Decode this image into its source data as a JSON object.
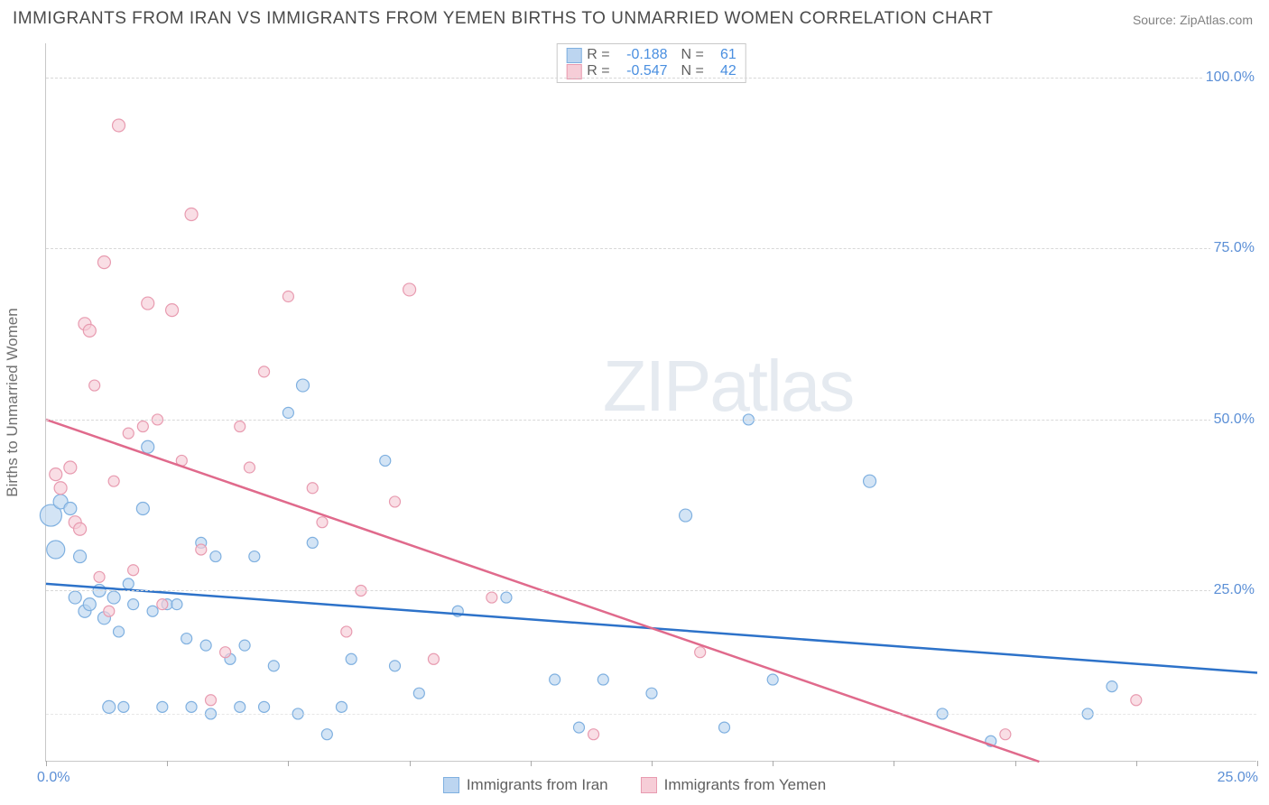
{
  "title": "IMMIGRANTS FROM IRAN VS IMMIGRANTS FROM YEMEN BIRTHS TO UNMARRIED WOMEN CORRELATION CHART",
  "source": "Source: ZipAtlas.com",
  "watermark_bold": "ZIP",
  "watermark_thin": "atlas",
  "yaxis_label": "Births to Unmarried Women",
  "chart": {
    "type": "scatter",
    "background_color": "#ffffff",
    "grid_color": "#d8d8d8",
    "border_color": "#c8c8c8",
    "xlim": [
      0,
      25
    ],
    "ylim": [
      0,
      105
    ],
    "xticks": [
      0,
      2.5,
      5,
      7.5,
      10,
      12.5,
      15,
      17.5,
      20,
      22.5,
      25
    ],
    "xtick_labels": {
      "0": "0.0%",
      "25": "25.0%"
    },
    "ygrid": [
      25,
      50,
      75,
      100
    ],
    "ygrid_minor": [
      7
    ],
    "ytick_labels": {
      "25": "25.0%",
      "50": "50.0%",
      "75": "75.0%",
      "100": "100.0%"
    },
    "label_color": "#5b8fd6",
    "axis_label_color": "#707070",
    "label_fontsize": 16
  },
  "series": [
    {
      "name": "Immigrants from Iran",
      "fill": "#bcd5f0",
      "stroke": "#7fb0e0",
      "line_color": "#2d72c9",
      "line_width": 2.5,
      "r_value": "-0.188",
      "n_value": "61",
      "trend": {
        "x1": 0,
        "y1": 26,
        "x2": 25,
        "y2": 13
      },
      "points": [
        [
          0.1,
          36,
          12
        ],
        [
          0.2,
          31,
          10
        ],
        [
          0.3,
          38,
          8
        ],
        [
          0.5,
          37,
          7
        ],
        [
          0.6,
          24,
          7
        ],
        [
          0.7,
          30,
          7
        ],
        [
          0.8,
          22,
          7
        ],
        [
          0.9,
          23,
          7
        ],
        [
          1.1,
          25,
          7
        ],
        [
          1.2,
          21,
          7
        ],
        [
          1.3,
          8,
          7
        ],
        [
          1.4,
          24,
          7
        ],
        [
          1.5,
          19,
          6
        ],
        [
          1.6,
          8,
          6
        ],
        [
          1.7,
          26,
          6
        ],
        [
          1.8,
          23,
          6
        ],
        [
          2.0,
          37,
          7
        ],
        [
          2.1,
          46,
          7
        ],
        [
          2.2,
          22,
          6
        ],
        [
          2.4,
          8,
          6
        ],
        [
          2.5,
          23,
          6
        ],
        [
          2.7,
          23,
          6
        ],
        [
          2.9,
          18,
          6
        ],
        [
          3.0,
          8,
          6
        ],
        [
          3.2,
          32,
          6
        ],
        [
          3.3,
          17,
          6
        ],
        [
          3.4,
          7,
          6
        ],
        [
          3.5,
          30,
          6
        ],
        [
          3.8,
          15,
          6
        ],
        [
          4.0,
          8,
          6
        ],
        [
          4.1,
          17,
          6
        ],
        [
          4.3,
          30,
          6
        ],
        [
          4.5,
          8,
          6
        ],
        [
          4.7,
          14,
          6
        ],
        [
          5.0,
          51,
          6
        ],
        [
          5.2,
          7,
          6
        ],
        [
          5.3,
          55,
          7
        ],
        [
          5.5,
          32,
          6
        ],
        [
          5.8,
          4,
          6
        ],
        [
          6.1,
          8,
          6
        ],
        [
          6.3,
          15,
          6
        ],
        [
          7.0,
          44,
          6
        ],
        [
          7.2,
          14,
          6
        ],
        [
          7.7,
          10,
          6
        ],
        [
          8.5,
          22,
          6
        ],
        [
          9.5,
          24,
          6
        ],
        [
          10.5,
          12,
          6
        ],
        [
          11.0,
          5,
          6
        ],
        [
          11.5,
          12,
          6
        ],
        [
          12.5,
          10,
          6
        ],
        [
          13.2,
          36,
          7
        ],
        [
          14.0,
          5,
          6
        ],
        [
          14.5,
          50,
          6
        ],
        [
          15.0,
          12,
          6
        ],
        [
          17.0,
          41,
          7
        ],
        [
          18.5,
          7,
          6
        ],
        [
          19.5,
          3,
          6
        ],
        [
          21.5,
          7,
          6
        ],
        [
          22.0,
          11,
          6
        ]
      ]
    },
    {
      "name": "Immigrants from Yemen",
      "fill": "#f6cdd7",
      "stroke": "#e89bb0",
      "line_color": "#e06a8c",
      "line_width": 2.5,
      "r_value": "-0.547",
      "n_value": "42",
      "trend": {
        "x1": 0,
        "y1": 50,
        "x2": 20.5,
        "y2": 0
      },
      "points": [
        [
          0.2,
          42,
          7
        ],
        [
          0.3,
          40,
          7
        ],
        [
          0.5,
          43,
          7
        ],
        [
          0.6,
          35,
          7
        ],
        [
          0.7,
          34,
          7
        ],
        [
          0.8,
          64,
          7
        ],
        [
          0.9,
          63,
          7
        ],
        [
          1.0,
          55,
          6
        ],
        [
          1.1,
          27,
          6
        ],
        [
          1.2,
          73,
          7
        ],
        [
          1.3,
          22,
          6
        ],
        [
          1.4,
          41,
          6
        ],
        [
          1.5,
          93,
          7
        ],
        [
          1.7,
          48,
          6
        ],
        [
          1.8,
          28,
          6
        ],
        [
          2.0,
          49,
          6
        ],
        [
          2.1,
          67,
          7
        ],
        [
          2.3,
          50,
          6
        ],
        [
          2.4,
          23,
          6
        ],
        [
          2.6,
          66,
          7
        ],
        [
          2.8,
          44,
          6
        ],
        [
          3.0,
          80,
          7
        ],
        [
          3.2,
          31,
          6
        ],
        [
          3.4,
          9,
          6
        ],
        [
          3.7,
          16,
          6
        ],
        [
          4.0,
          49,
          6
        ],
        [
          4.2,
          43,
          6
        ],
        [
          4.5,
          57,
          6
        ],
        [
          5.0,
          68,
          6
        ],
        [
          5.5,
          40,
          6
        ],
        [
          5.7,
          35,
          6
        ],
        [
          6.2,
          19,
          6
        ],
        [
          6.5,
          25,
          6
        ],
        [
          7.2,
          38,
          6
        ],
        [
          7.5,
          69,
          7
        ],
        [
          8.0,
          15,
          6
        ],
        [
          9.2,
          24,
          6
        ],
        [
          11.3,
          4,
          6
        ],
        [
          13.5,
          16,
          6
        ],
        [
          19.8,
          4,
          6
        ],
        [
          22.5,
          9,
          6
        ]
      ]
    }
  ],
  "legend_top": {
    "r_label": "R  =",
    "n_label": "N  ="
  },
  "legend_bottom": [
    {
      "label": "Immigrants from Iran",
      "series_idx": 0
    },
    {
      "label": "Immigrants from Yemen",
      "series_idx": 1
    }
  ]
}
